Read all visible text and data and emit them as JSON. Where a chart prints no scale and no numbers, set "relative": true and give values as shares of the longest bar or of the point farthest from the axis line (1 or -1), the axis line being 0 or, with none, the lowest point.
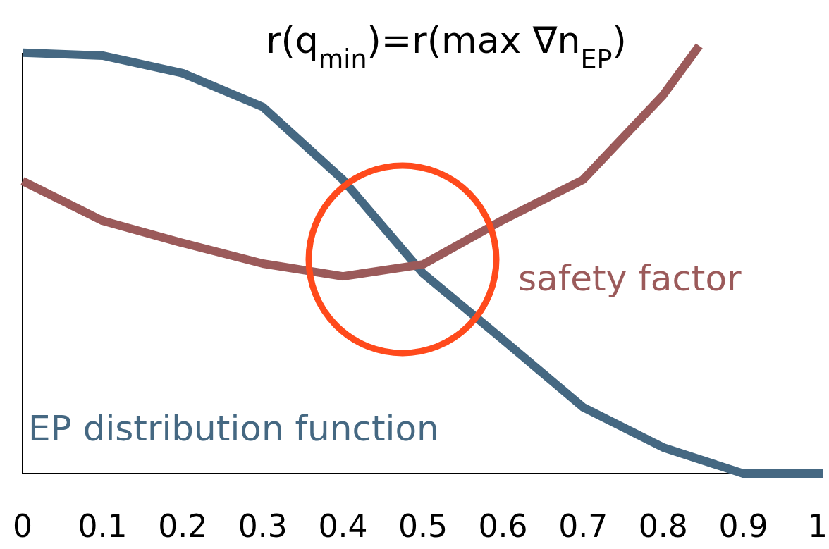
{
  "chart_data": {
    "type": "line",
    "relative": true,
    "title": "r(q$_{min}$)=r(max ∇n$_{EP}$)",
    "xlim": [
      0,
      1
    ],
    "xticks": [
      0,
      0.1,
      0.2,
      0.3,
      0.4,
      0.5,
      0.6,
      0.7,
      0.8,
      0.9,
      1
    ],
    "grid": false,
    "marker": "none",
    "line_style": "solid",
    "series": [
      {
        "name": "EP distribution function",
        "color": "#456882",
        "x": [
          0,
          0.1,
          0.2,
          0.3,
          0.4,
          0.5,
          0.6,
          0.7,
          0.8,
          0.9,
          1
        ],
        "values": [
          0.984,
          0.977,
          0.936,
          0.857,
          0.687,
          0.468,
          0.313,
          0.155,
          0.061,
          0,
          0
        ]
      },
      {
        "name": "safety factor",
        "color": "#9b5a5a",
        "x": [
          0,
          0.1,
          0.2,
          0.3,
          0.4,
          0.5,
          0.6,
          0.7,
          0.8,
          0.845
        ],
        "values": [
          0.684,
          0.591,
          0.539,
          0.491,
          0.461,
          0.489,
          0.593,
          0.687,
          0.885,
          1
        ]
      }
    ]
  }
}
